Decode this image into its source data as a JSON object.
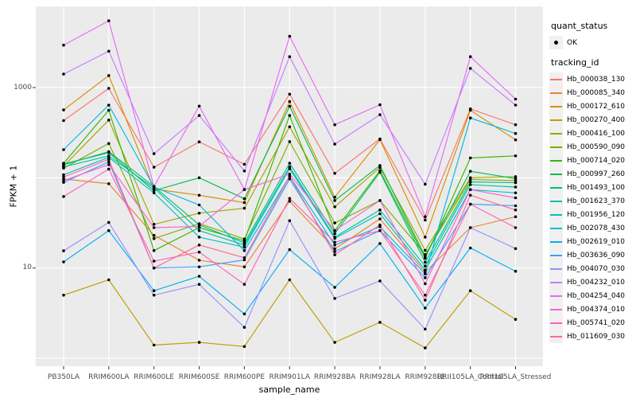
{
  "chart_data": {
    "type": "line",
    "title": "",
    "xlabel": "sample_name",
    "ylabel": "FPKM + 1",
    "yscale": "log10",
    "grid": true,
    "panel_background": "#EBEBEB",
    "grid_color": "#FFFFFF",
    "point_color": "#000000",
    "tick_label_color": "#4D4D4D",
    "y_tick_labels": [
      {
        "label": "1000",
        "value": 1000
      },
      {
        "label": "10",
        "value": 10
      }
    ],
    "y_gridlines": [
      1,
      10,
      100,
      1000
    ],
    "ylim": [
      0.8,
      8000
    ],
    "legend_position": "right",
    "categories": [
      "PB350LA",
      "RRIM600LA",
      "RRIM600LE",
      "RRIM600SE",
      "RRIM600PE",
      "RRIM901LA",
      "RRIM928BA",
      "RRIM928LA",
      "RRIM928LE",
      "RRII105LA_Control",
      "RRII105LA_Stressed"
    ],
    "legend": {
      "quant_status_title": "quant_status",
      "quant_items": [
        {
          "label": "OK"
        }
      ],
      "tracking_id_title": "tracking_id"
    },
    "series": [
      {
        "name": "Hb_000038_130",
        "color": "#F8766D",
        "values": [
          430,
          980,
          131,
          250,
          141,
          845,
          112,
          270,
          34,
          580,
          387
        ]
      },
      {
        "name": "Hb_000085_340",
        "color": "#EA8331",
        "values": [
          97,
          86,
          23,
          12.2,
          10.3,
          55,
          16.3,
          35,
          9,
          28,
          37
        ]
      },
      {
        "name": "Hb_000172_610",
        "color": "#D89000",
        "values": [
          565,
          1360,
          75,
          64,
          53,
          700,
          61,
          265,
          22,
          560,
          263
        ]
      },
      {
        "name": "Hb_000270_400",
        "color": "#C09B00",
        "values": [
          5,
          7.4,
          1.4,
          1.5,
          1.35,
          7.4,
          1.5,
          2.5,
          1.3,
          5.6,
          2.7
        ]
      },
      {
        "name": "Hb_000416_100",
        "color": "#A3A500",
        "values": [
          135,
          437,
          30.5,
          40.5,
          46,
          367,
          47.7,
          130,
          15.7,
          100,
          103
        ]
      },
      {
        "name": "Hb_000590_090",
        "color": "#7CAE00",
        "values": [
          128,
          240,
          21.2,
          31,
          21,
          252,
          31.6,
          56,
          14.1,
          96,
          93
        ]
      },
      {
        "name": "Hb_000714_020",
        "color": "#39B600",
        "values": [
          145,
          560,
          15.6,
          28,
          20,
          490,
          26,
          120,
          12.8,
          166,
          175
        ]
      },
      {
        "name": "Hb_000997_260",
        "color": "#00BB4E",
        "values": [
          142,
          190,
          72,
          100,
          58.5,
          620,
          56,
          137,
          13.4,
          118,
          98
        ]
      },
      {
        "name": "Hb_001493_100",
        "color": "#00BF7D",
        "values": [
          139,
          195,
          80,
          30,
          19,
          145,
          24,
          115,
          11.6,
          90,
          88
        ]
      },
      {
        "name": "Hb_001623_370",
        "color": "#00C1A3",
        "values": [
          132,
          175,
          77,
          26,
          18,
          132,
          22,
          44,
          10.5,
          84,
          79
        ]
      },
      {
        "name": "Hb_001956_120",
        "color": "#00BFC4",
        "values": [
          108,
          168,
          68,
          22,
          17,
          126,
          21.3,
          40,
          9.5,
          74,
          68
        ]
      },
      {
        "name": "Hb_002078_430",
        "color": "#00BAE0",
        "values": [
          205,
          640,
          79,
          50,
          15.6,
          104,
          18,
          28.7,
          8.6,
          460,
          310
        ]
      },
      {
        "name": "Hb_002619_010",
        "color": "#00B0F6",
        "values": [
          11.7,
          26,
          5.6,
          8.1,
          3.1,
          16,
          6.1,
          18.7,
          3.6,
          16.7,
          9.2
        ]
      },
      {
        "name": "Hb_003636_090",
        "color": "#35A2FF",
        "values": [
          89,
          150,
          10,
          10.3,
          12.3,
          97,
          15.2,
          26,
          7.8,
          51,
          49
        ]
      },
      {
        "name": "Hb_004070_030",
        "color": "#9590FF",
        "values": [
          15.5,
          32,
          5,
          6.6,
          2.2,
          33.5,
          4.6,
          7.2,
          2.1,
          28,
          16.4
        ]
      },
      {
        "name": "Hb_004232_010",
        "color": "#C77CFF",
        "values": [
          1410,
          2530,
          185,
          490,
          119,
          2200,
          236,
          500,
          85,
          1630,
          640
        ]
      },
      {
        "name": "Hb_004254_040",
        "color": "#E76BF3",
        "values": [
          2950,
          5500,
          80,
          623,
          74,
          3700,
          387,
          645,
          37,
          2200,
          745
        ]
      },
      {
        "name": "Hb_004374_010",
        "color": "#FA62DB",
        "values": [
          93,
          140,
          28,
          29,
          74,
          110,
          26,
          56,
          6.7,
          74,
          60
        ]
      },
      {
        "name": "Hb_005741_020",
        "color": "#FF62BC",
        "values": [
          62,
          125,
          11.9,
          15,
          6.6,
          59,
          19.3,
          26,
          5,
          51,
          28
        ]
      },
      {
        "name": "Hb_011609_030",
        "color": "#FF6A98",
        "values": [
          102,
          160,
          10,
          18,
          13,
          104,
          14,
          30,
          4.4,
          64,
          44
        ]
      }
    ]
  }
}
